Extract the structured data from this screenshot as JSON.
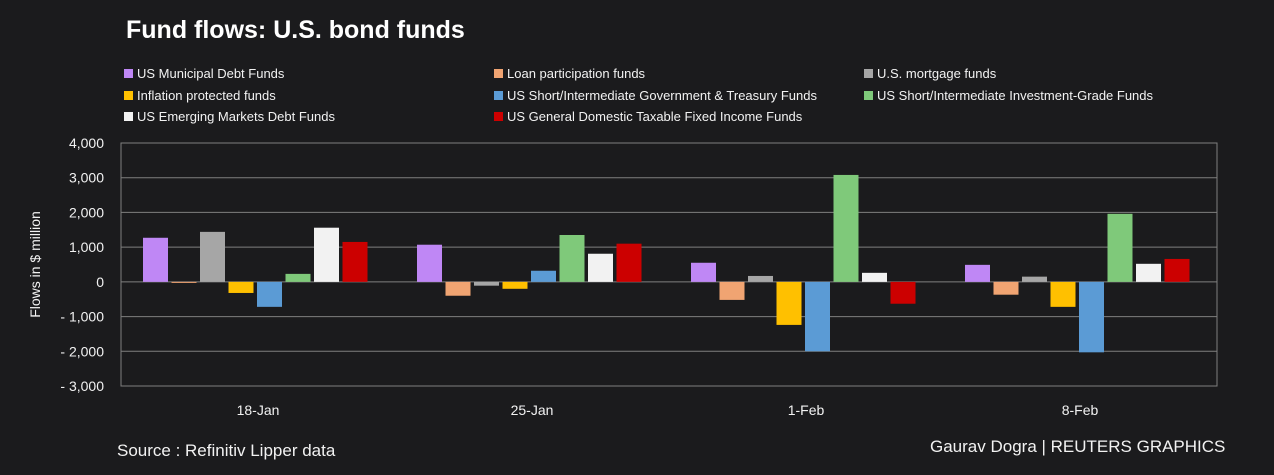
{
  "chart_data": {
    "type": "bar",
    "title": "Fund flows: U.S. bond funds",
    "ylabel": "Flows in $ million",
    "xlabel": "",
    "ylim": [
      -3000,
      4000
    ],
    "yticks": [
      4000,
      3000,
      2000,
      1000,
      0,
      -1000,
      -2000,
      -3000
    ],
    "ytick_labels": [
      "4,000",
      "3,000",
      "2,000",
      "1,000",
      "0",
      "- 1,000",
      "- 2,000",
      "- 3,000"
    ],
    "grid": true,
    "legend_placement": "top",
    "categories": [
      "18-Jan",
      "25-Jan",
      "1-Feb",
      "8-Feb"
    ],
    "series": [
      {
        "name": "US Municipal Debt Funds",
        "color": "#bf87f5",
        "values": [
          1270,
          1070,
          550,
          490
        ]
      },
      {
        "name": "Loan participation funds",
        "color": "#f0a472",
        "values": [
          -30,
          -400,
          -520,
          -370
        ]
      },
      {
        "name": "U.S. mortgage funds",
        "color": "#a6a6a6",
        "values": [
          1440,
          -110,
          170,
          150
        ]
      },
      {
        "name": "Inflation protected funds",
        "color": "#ffc000",
        "values": [
          -320,
          -200,
          -1240,
          -720
        ]
      },
      {
        "name": "US Short/Intermediate Government & Treasury Funds",
        "color": "#5b9bd5",
        "values": [
          -720,
          320,
          -2000,
          -2030
        ]
      },
      {
        "name": "US Short/Intermediate Investment-Grade Funds",
        "color": "#7fc97a",
        "values": [
          230,
          1350,
          3080,
          1960
        ]
      },
      {
        "name": "US Emerging Markets Debt Funds",
        "color": "#f2f2f2",
        "values": [
          1560,
          810,
          260,
          520
        ]
      },
      {
        "name": "US General Domestic Taxable Fixed Income Funds",
        "color": "#cc0000",
        "values": [
          1150,
          1100,
          -630,
          660
        ]
      }
    ]
  },
  "footer": {
    "source": "Source : Refinitiv Lipper data",
    "credit": "Gaurav Dogra | REUTERS GRAPHICS"
  }
}
